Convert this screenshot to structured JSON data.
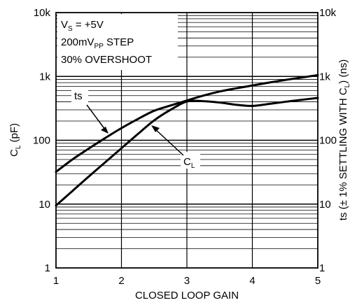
{
  "chart_data": {
    "type": "line",
    "xlabel": "CLOSED LOOP GAIN",
    "ylabel_left": "C(L) (pF)",
    "ylabel_right": "ts (±1% SETTLING WITH C(L)) (ns)",
    "x_ticks": [
      "1",
      "2",
      "3",
      "4",
      "5"
    ],
    "y_ticks": [
      "1",
      "10",
      "100",
      "1k",
      "10k"
    ],
    "xlim": [
      1,
      5
    ],
    "ylim": [
      1,
      10000
    ],
    "y_scale": "log",
    "grid": true,
    "conditions": [
      {
        "main": "V",
        "sub": "S",
        "rest": " = +5V"
      },
      {
        "main": "200mV",
        "sub": "PP",
        "rest": " STEP"
      },
      {
        "main": "30% OVERSHOOT",
        "sub": "",
        "rest": ""
      }
    ],
    "series": [
      {
        "name": "ts",
        "x": [
          1.0,
          1.25,
          1.5,
          1.75,
          2.0,
          2.25,
          2.5,
          2.75,
          3.0,
          3.25,
          3.5,
          3.75,
          4.0,
          4.25,
          4.5,
          4.75,
          5.0
        ],
        "y": [
          32,
          50,
          74,
          108,
          155,
          215,
          290,
          350,
          420,
          500,
          580,
          650,
          720,
          800,
          880,
          960,
          1050
        ]
      },
      {
        "name": "C(L)",
        "x": [
          1.0,
          1.25,
          1.5,
          1.75,
          2.0,
          2.25,
          2.5,
          2.75,
          3.0,
          3.25,
          3.5,
          3.75,
          4.0,
          4.25,
          4.5,
          4.75,
          5.0
        ],
        "y": [
          9.5,
          16,
          27,
          45,
          75,
          125,
          205,
          300,
          405,
          410,
          390,
          360,
          345,
          370,
          400,
          430,
          460
        ]
      }
    ],
    "labels": {
      "ts": "ts",
      "cl_main": "C",
      "cl_sub": "L"
    }
  }
}
